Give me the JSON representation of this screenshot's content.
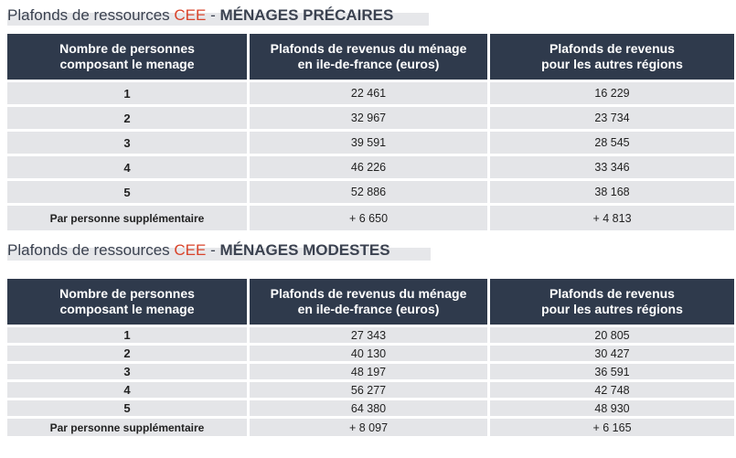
{
  "sections": [
    {
      "title_prefix": "Plafonds de ressources ",
      "title_accent": "CEE",
      "title_sep": " - ",
      "title_caps": "MÉNAGES PRÉCAIRES",
      "headers": [
        [
          "Nombre de personnes",
          "composant le menage"
        ],
        [
          "Plafonds de revenus du ménage",
          "en ile-de-france (euros)"
        ],
        [
          "Plafonds de revenus",
          "pour les autres régions"
        ]
      ],
      "rows": [
        [
          "1",
          "22 461",
          "16 229"
        ],
        [
          "2",
          "32 967",
          "23 734"
        ],
        [
          "3",
          "39 591",
          "28 545"
        ],
        [
          "4",
          "46 226",
          "33 346"
        ],
        [
          "5",
          "52 886",
          "38 168"
        ],
        [
          "Par personne supplémentaire",
          "+ 6 650",
          "+ 4 813"
        ]
      ]
    },
    {
      "title_prefix": "Plafonds de ressources ",
      "title_accent": "CEE",
      "title_sep": " - ",
      "title_caps": "MÉNAGES MODESTES",
      "headers": [
        [
          "Nombre de personnes",
          "composant le menage"
        ],
        [
          "Plafonds de revenus du ménage",
          "en ile-de-france (euros)"
        ],
        [
          "Plafonds de revenus",
          "pour les autres régions"
        ]
      ],
      "rows": [
        [
          "1",
          "27 343",
          "20 805"
        ],
        [
          "2",
          "40 130",
          "30 427"
        ],
        [
          "3",
          "48 197",
          "36 591"
        ],
        [
          "4",
          "56 277",
          "42 748"
        ],
        [
          "5",
          "64 380",
          "48 930"
        ],
        [
          "Par personne supplémentaire",
          "+ 8 097",
          "+ 6 165"
        ]
      ]
    }
  ]
}
